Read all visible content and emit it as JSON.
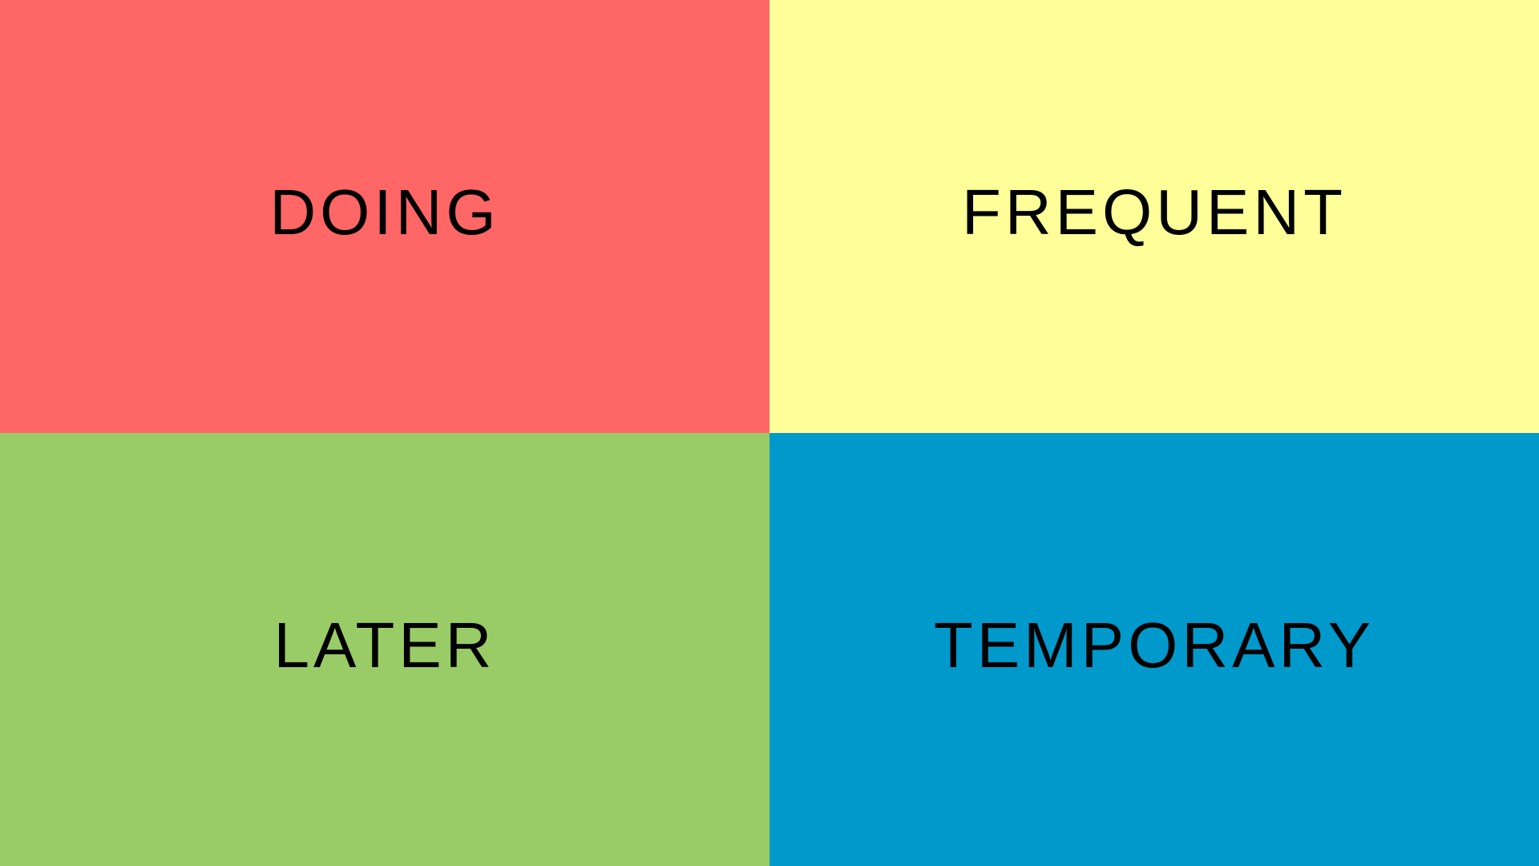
{
  "quadrants": [
    {
      "label": "DOING",
      "color": "#ff6666"
    },
    {
      "label": "FREQUENT",
      "color": "#ffff99"
    },
    {
      "label": "LATER",
      "color": "#99cc66"
    },
    {
      "label": "TEMPORARY",
      "color": "#0099cc"
    }
  ]
}
